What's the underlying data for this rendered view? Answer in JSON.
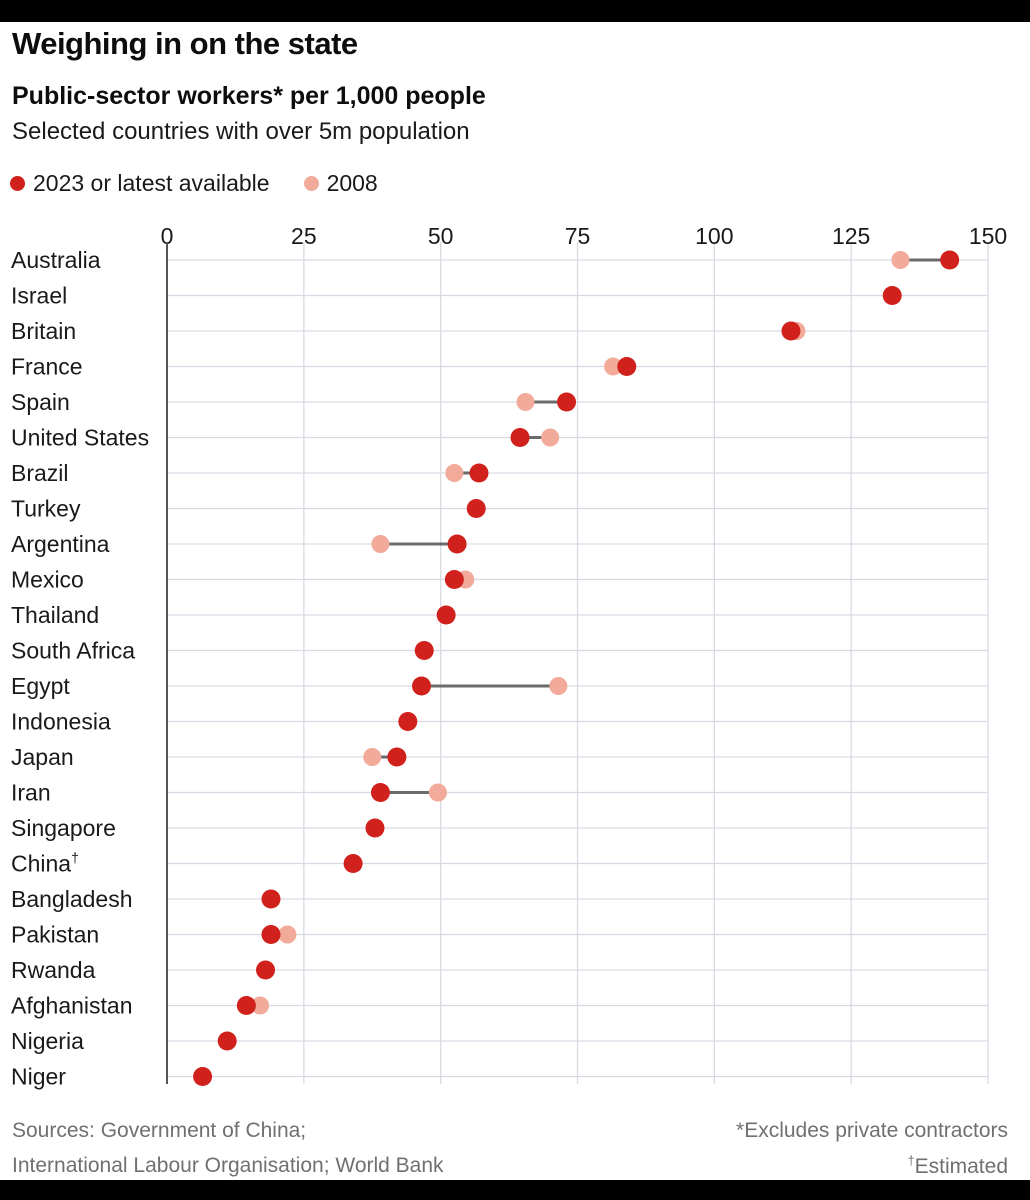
{
  "title": "Weighing in on the state",
  "subtitle": "Public-sector workers* per 1,000 people",
  "subsubtitle": "Selected countries with over 5m population",
  "footnotes": {
    "source_line1": "Sources: Government of China;",
    "source_line2": "International Labour Organisation; World Bank",
    "note1": "*Excludes private contractors",
    "note2_mark": "†",
    "note2_text": "Estimated"
  },
  "chart_data": {
    "type": "dot",
    "xlim": [
      0,
      150
    ],
    "xticks": [
      0,
      25,
      50,
      75,
      100,
      125,
      150
    ],
    "legend_position": "top-left",
    "grid": true,
    "colors": {
      "latest": "#d0211c",
      "y2008": "#f2aa9a",
      "connector": "#6b6b6b",
      "grid": "#d9d9e3",
      "axis": "#555555"
    },
    "series": [
      {
        "name": "2023 or latest available",
        "key": "latest"
      },
      {
        "name": "2008",
        "key": "y2008"
      }
    ],
    "countries": [
      {
        "name": "Australia",
        "mark": "",
        "latest": 143,
        "y2008": 134
      },
      {
        "name": "Israel",
        "mark": "",
        "latest": 132.5,
        "y2008": null
      },
      {
        "name": "Britain",
        "mark": "",
        "latest": 114,
        "y2008": 115
      },
      {
        "name": "France",
        "mark": "",
        "latest": 84,
        "y2008": 81.5
      },
      {
        "name": "Spain",
        "mark": "",
        "latest": 73,
        "y2008": 65.5
      },
      {
        "name": "United States",
        "mark": "",
        "latest": 64.5,
        "y2008": 70
      },
      {
        "name": "Brazil",
        "mark": "",
        "latest": 57,
        "y2008": 52.5
      },
      {
        "name": "Turkey",
        "mark": "",
        "latest": 56.5,
        "y2008": null
      },
      {
        "name": "Argentina",
        "mark": "",
        "latest": 53,
        "y2008": 39
      },
      {
        "name": "Mexico",
        "mark": "",
        "latest": 52.5,
        "y2008": 54.5
      },
      {
        "name": "Thailand",
        "mark": "",
        "latest": 51,
        "y2008": null
      },
      {
        "name": "South Africa",
        "mark": "",
        "latest": 47,
        "y2008": null
      },
      {
        "name": "Egypt",
        "mark": "",
        "latest": 46.5,
        "y2008": 71.5
      },
      {
        "name": "Indonesia",
        "mark": "",
        "latest": 44,
        "y2008": null
      },
      {
        "name": "Japan",
        "mark": "",
        "latest": 42,
        "y2008": 37.5
      },
      {
        "name": "Iran",
        "mark": "",
        "latest": 39,
        "y2008": 49.5
      },
      {
        "name": "Singapore",
        "mark": "",
        "latest": 38,
        "y2008": null
      },
      {
        "name": "China",
        "mark": "†",
        "latest": 34,
        "y2008": null
      },
      {
        "name": "Bangladesh",
        "mark": "",
        "latest": 19,
        "y2008": null
      },
      {
        "name": "Pakistan",
        "mark": "",
        "latest": 19,
        "y2008": 22
      },
      {
        "name": "Rwanda",
        "mark": "",
        "latest": 18,
        "y2008": null
      },
      {
        "name": "Afghanistan",
        "mark": "",
        "latest": 14.5,
        "y2008": 17
      },
      {
        "name": "Nigeria",
        "mark": "",
        "latest": 11,
        "y2008": null
      },
      {
        "name": "Niger",
        "mark": "",
        "latest": 6.5,
        "y2008": null
      }
    ]
  }
}
